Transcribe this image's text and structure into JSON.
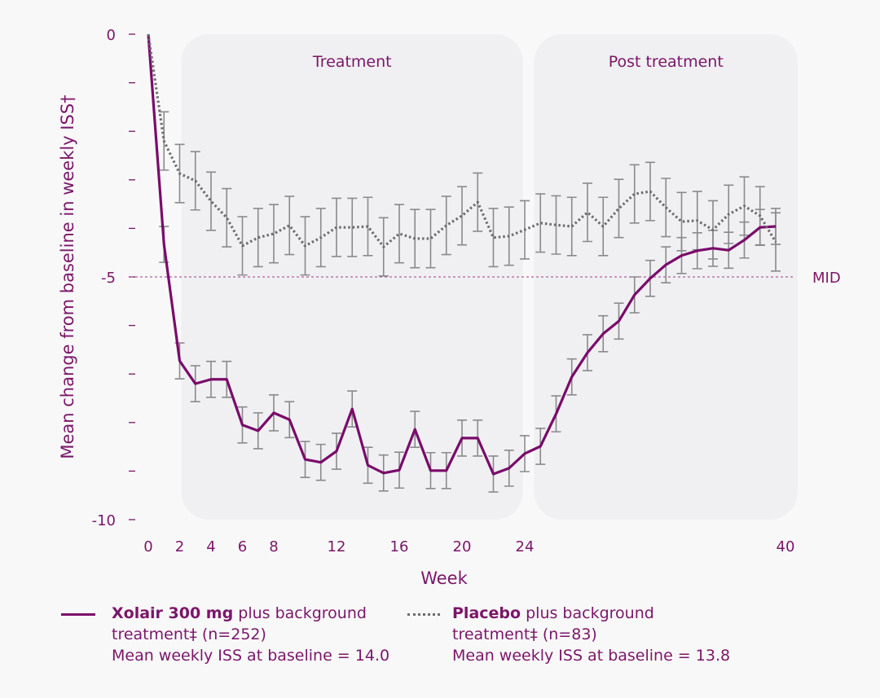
{
  "chart_data": {
    "type": "line",
    "xlabel": "Week",
    "ylabel": "Mean change from baseline in weekly ISS†",
    "xlim": [
      0,
      40
    ],
    "ylim": [
      -10,
      0
    ],
    "x_tick_labels": [
      "0",
      "2",
      "4",
      "6",
      "8",
      "12",
      "16",
      "20",
      "24",
      "40"
    ],
    "x_tick_values": [
      0,
      2,
      4,
      6,
      8,
      12,
      16,
      20,
      24,
      40
    ],
    "y_tick_labels": [
      "0",
      "-5",
      "-10"
    ],
    "y_tick_values": [
      0,
      -5,
      -10
    ],
    "y_minor_ticks": [
      -1,
      -2,
      -3,
      -4,
      -6,
      -7,
      -8,
      -9
    ],
    "regions": [
      {
        "label": "Treatment",
        "from": 2,
        "to": 24
      },
      {
        "label": "Post treatment",
        "from": 24.5,
        "to": 41.5
      }
    ],
    "reference_line": {
      "label": "MID",
      "y": -5
    },
    "x": [
      0,
      1,
      2,
      3,
      4,
      5,
      6,
      7,
      8,
      9,
      10,
      11,
      12,
      13,
      14,
      15,
      16,
      17,
      18,
      19,
      20,
      21,
      22,
      23,
      24,
      25,
      26,
      27,
      28,
      29,
      30,
      31,
      32,
      33,
      34,
      35,
      36,
      37,
      38,
      39,
      40
    ],
    "series": [
      {
        "name": "Xolair 300 mg",
        "style": "solid",
        "color": "#7a0a6a",
        "values": [
          0,
          -4.33,
          -6.73,
          -7.2,
          -7.11,
          -7.11,
          -8.05,
          -8.17,
          -7.8,
          -7.94,
          -8.76,
          -8.82,
          -8.59,
          -7.72,
          -8.88,
          -9.04,
          -8.98,
          -8.14,
          -8.99,
          -8.99,
          -8.32,
          -8.32,
          -9.06,
          -8.94,
          -8.64,
          -8.49,
          -7.82,
          -7.06,
          -6.56,
          -6.17,
          -5.91,
          -5.37,
          -5.03,
          -4.75,
          -4.56,
          -4.46,
          -4.41,
          -4.45,
          -4.24,
          -3.98,
          -3.96
        ],
        "error": 0.37
      },
      {
        "name": "Placebo",
        "style": "dotted",
        "color": "#6d6d70",
        "values": [
          0,
          -2.2,
          -2.87,
          -3.02,
          -3.44,
          -3.78,
          -4.36,
          -4.19,
          -4.11,
          -3.94,
          -4.36,
          -4.19,
          -3.98,
          -3.98,
          -3.96,
          -4.38,
          -4.11,
          -4.21,
          -4.21,
          -3.94,
          -3.74,
          -3.46,
          -4.19,
          -4.16,
          -4.03,
          -3.89,
          -3.93,
          -3.96,
          -3.67,
          -3.96,
          -3.59,
          -3.29,
          -3.24,
          -3.57,
          -3.86,
          -3.84,
          -4.03,
          -3.71,
          -3.54,
          -3.74,
          -4.28
        ],
        "error": 0.6
      }
    ]
  },
  "legend": {
    "xolair": {
      "bold": "Xolair 300 mg",
      "rest": " plus background",
      "line2": "treatment‡ (n=252)",
      "line3": "Mean weekly ISS at baseline = 14.0"
    },
    "placebo": {
      "bold": "Placebo",
      "rest": " plus background",
      "line2": "treatment‡ (n=83)",
      "line3": "Mean weekly ISS at baseline = 13.8"
    }
  },
  "colors": {
    "accent": "#7a0a6a",
    "text": "#7b1669",
    "grey": "#6d6d70",
    "panel": "#f0f0f2"
  }
}
